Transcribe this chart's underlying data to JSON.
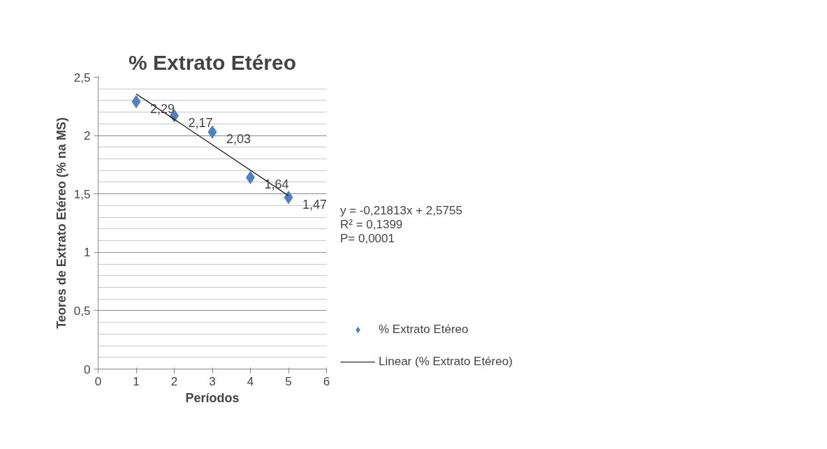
{
  "chart_data": {
    "type": "scatter",
    "title": "% Extrato Etéreo",
    "xlabel": "Períodos",
    "ylabel": "Teores de Extrato Etéreo (% na MS)",
    "x": [
      1,
      2,
      3,
      4,
      5
    ],
    "series": [
      {
        "name": "% Extrato Etéreo",
        "color": "#4f81bd",
        "values": [
          2.29,
          2.17,
          2.03,
          1.64,
          1.47
        ],
        "value_labels": [
          "2,29",
          "2,17",
          "2,03",
          "1,64",
          "1,47"
        ],
        "marker": "diamond"
      },
      {
        "name": "Linear (% Extrato Etéreo)",
        "type": "line",
        "color": "#000000",
        "x": [
          1,
          5
        ],
        "values": [
          2.357,
          1.485
        ],
        "line_style": "solid"
      }
    ],
    "xlim": [
      0,
      6
    ],
    "xticks": [
      0,
      1,
      2,
      3,
      4,
      5,
      6
    ],
    "ylim": [
      0,
      2.5
    ],
    "yticks": [
      0,
      {
        "value": 0.5,
        "label": "0,5"
      },
      1,
      {
        "value": 1.5,
        "label": "1,5"
      },
      2,
      {
        "value": 2.5,
        "label": "2,5"
      }
    ],
    "grid": "y",
    "legend": "right",
    "annotations": [
      "y = -0,21813x + 2,5755",
      "R² = 0,1399",
      "P= 0,0001"
    ]
  }
}
